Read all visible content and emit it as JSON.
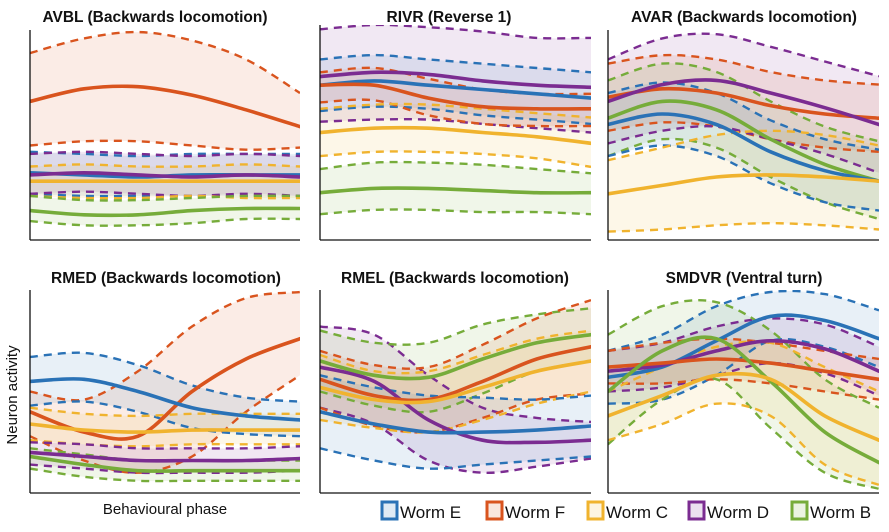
{
  "figure": {
    "ylabel": "Neuron activity",
    "xlabel": "Behavioural phase"
  },
  "legend": [
    {
      "name": "Worm E",
      "color": "#2a72b6"
    },
    {
      "name": "Worm F",
      "color": "#d9541e"
    },
    {
      "name": "Worm C",
      "color": "#f0b32e"
    },
    {
      "name": "Worm D",
      "color": "#7b2c91"
    },
    {
      "name": "Worm B",
      "color": "#76ac3a"
    }
  ],
  "chart_data": [
    {
      "type": "line",
      "title": "AVBL (Backwards locomotion)",
      "x": [
        0,
        0.2,
        0.4,
        0.6,
        0.8,
        1
      ],
      "ylim": [
        0,
        1
      ],
      "xlim": [
        0,
        1
      ],
      "series": [
        {
          "name": "Worm F",
          "mean": [
            0.66,
            0.72,
            0.73,
            0.69,
            0.62,
            0.54
          ],
          "upper": [
            0.89,
            0.96,
            0.99,
            0.95,
            0.86,
            0.7
          ],
          "lower": [
            0.45,
            0.47,
            0.47,
            0.45,
            0.43,
            0.44
          ]
        },
        {
          "name": "Worm E",
          "mean": [
            0.32,
            0.31,
            0.3,
            0.31,
            0.31,
            0.31
          ],
          "upper": [
            0.42,
            0.41,
            0.4,
            0.41,
            0.41,
            0.41
          ],
          "lower": [
            0.22,
            0.21,
            0.21,
            0.21,
            0.21,
            0.21
          ]
        },
        {
          "name": "Worm D",
          "mean": [
            0.31,
            0.32,
            0.31,
            0.3,
            0.31,
            0.3
          ],
          "upper": [
            0.41,
            0.42,
            0.41,
            0.4,
            0.41,
            0.4
          ],
          "lower": [
            0.22,
            0.23,
            0.22,
            0.21,
            0.22,
            0.21
          ]
        },
        {
          "name": "Worm C",
          "mean": [
            0.28,
            0.28,
            0.28,
            0.28,
            0.28,
            0.28
          ],
          "upper": [
            0.35,
            0.36,
            0.35,
            0.35,
            0.36,
            0.35
          ],
          "lower": [
            0.21,
            0.2,
            0.2,
            0.21,
            0.2,
            0.2
          ]
        },
        {
          "name": "Worm B",
          "mean": [
            0.14,
            0.12,
            0.12,
            0.14,
            0.15,
            0.15
          ],
          "upper": [
            0.21,
            0.19,
            0.19,
            0.2,
            0.21,
            0.21
          ],
          "lower": [
            0.09,
            0.07,
            0.07,
            0.08,
            0.1,
            0.1
          ]
        }
      ]
    },
    {
      "type": "line",
      "title": "RIVR (Reverse 1)",
      "x": [
        0,
        0.2,
        0.4,
        0.6,
        0.8,
        1
      ],
      "ylim": [
        0,
        1
      ],
      "xlim": [
        0,
        1
      ],
      "series": [
        {
          "name": "Worm D",
          "mean": [
            0.76,
            0.78,
            0.77,
            0.74,
            0.72,
            0.71
          ],
          "upper": [
            0.98,
            1.0,
            0.99,
            0.97,
            0.94,
            0.94
          ],
          "lower": [
            0.55,
            0.56,
            0.56,
            0.54,
            0.52,
            0.5
          ]
        },
        {
          "name": "Worm E",
          "mean": [
            0.72,
            0.74,
            0.72,
            0.7,
            0.68,
            0.66
          ],
          "upper": [
            0.84,
            0.86,
            0.84,
            0.82,
            0.8,
            0.78
          ],
          "lower": [
            0.6,
            0.62,
            0.61,
            0.58,
            0.56,
            0.54
          ]
        },
        {
          "name": "Worm F",
          "mean": [
            0.72,
            0.72,
            0.66,
            0.62,
            0.61,
            0.61
          ],
          "upper": [
            0.78,
            0.8,
            0.75,
            0.7,
            0.68,
            0.68
          ],
          "lower": [
            0.64,
            0.65,
            0.58,
            0.54,
            0.53,
            0.53
          ]
        },
        {
          "name": "Worm C",
          "mean": [
            0.5,
            0.52,
            0.52,
            0.5,
            0.48,
            0.45
          ],
          "upper": [
            0.61,
            0.63,
            0.63,
            0.61,
            0.59,
            0.57
          ],
          "lower": [
            0.39,
            0.41,
            0.41,
            0.4,
            0.38,
            0.34
          ]
        },
        {
          "name": "Worm B",
          "mean": [
            0.22,
            0.24,
            0.24,
            0.23,
            0.22,
            0.22
          ],
          "upper": [
            0.33,
            0.36,
            0.36,
            0.35,
            0.33,
            0.31
          ],
          "lower": [
            0.12,
            0.14,
            0.14,
            0.13,
            0.13,
            0.12
          ]
        }
      ]
    },
    {
      "type": "line",
      "title": "AVAR (Backwards locomotion)",
      "x": [
        0,
        0.2,
        0.4,
        0.6,
        0.8,
        1
      ],
      "ylim": [
        0,
        1
      ],
      "xlim": [
        0,
        1
      ],
      "series": [
        {
          "name": "Worm F",
          "mean": [
            0.68,
            0.72,
            0.7,
            0.64,
            0.6,
            0.58
          ],
          "upper": [
            0.84,
            0.88,
            0.86,
            0.8,
            0.76,
            0.74
          ],
          "lower": [
            0.52,
            0.56,
            0.54,
            0.48,
            0.44,
            0.42
          ]
        },
        {
          "name": "Worm D",
          "mean": [
            0.66,
            0.74,
            0.76,
            0.7,
            0.63,
            0.55
          ],
          "upper": [
            0.86,
            0.96,
            0.98,
            0.92,
            0.85,
            0.78
          ],
          "lower": [
            0.46,
            0.52,
            0.54,
            0.48,
            0.41,
            0.32
          ]
        },
        {
          "name": "Worm B",
          "mean": [
            0.58,
            0.66,
            0.62,
            0.48,
            0.36,
            0.28
          ],
          "upper": [
            0.76,
            0.84,
            0.8,
            0.66,
            0.54,
            0.47
          ],
          "lower": [
            0.4,
            0.48,
            0.44,
            0.3,
            0.18,
            0.1
          ]
        },
        {
          "name": "Worm E",
          "mean": [
            0.55,
            0.6,
            0.55,
            0.42,
            0.33,
            0.28
          ],
          "upper": [
            0.7,
            0.75,
            0.7,
            0.57,
            0.48,
            0.43
          ],
          "lower": [
            0.4,
            0.45,
            0.4,
            0.27,
            0.18,
            0.14
          ]
        },
        {
          "name": "Worm C",
          "mean": [
            0.22,
            0.26,
            0.3,
            0.31,
            0.3,
            0.28
          ],
          "upper": [
            0.38,
            0.44,
            0.5,
            0.52,
            0.5,
            0.45
          ],
          "lower": [
            0.04,
            0.05,
            0.07,
            0.08,
            0.07,
            0.05
          ]
        }
      ]
    },
    {
      "type": "line",
      "title": "RMED (Backwards locomotion)",
      "x": [
        0,
        0.2,
        0.4,
        0.6,
        0.8,
        1
      ],
      "ylim": [
        0,
        1
      ],
      "xlim": [
        0,
        1
      ],
      "series": [
        {
          "name": "Worm F",
          "mean": [
            0.4,
            0.3,
            0.28,
            0.5,
            0.66,
            0.76
          ],
          "upper": [
            0.5,
            0.46,
            0.6,
            0.82,
            0.96,
            0.99
          ],
          "lower": [
            0.28,
            0.16,
            0.1,
            0.18,
            0.4,
            0.58
          ]
        },
        {
          "name": "Worm E",
          "mean": [
            0.55,
            0.56,
            0.5,
            0.42,
            0.38,
            0.36
          ],
          "upper": [
            0.67,
            0.69,
            0.63,
            0.53,
            0.47,
            0.45
          ],
          "lower": [
            0.43,
            0.45,
            0.4,
            0.32,
            0.29,
            0.28
          ]
        },
        {
          "name": "Worm C",
          "mean": [
            0.34,
            0.31,
            0.3,
            0.31,
            0.31,
            0.31
          ],
          "upper": [
            0.42,
            0.39,
            0.38,
            0.39,
            0.39,
            0.39
          ],
          "lower": [
            0.26,
            0.24,
            0.23,
            0.24,
            0.24,
            0.24
          ]
        },
        {
          "name": "Worm D",
          "mean": [
            0.2,
            0.18,
            0.16,
            0.16,
            0.16,
            0.17
          ],
          "upper": [
            0.25,
            0.24,
            0.22,
            0.22,
            0.22,
            0.23
          ],
          "lower": [
            0.14,
            0.12,
            0.1,
            0.1,
            0.1,
            0.11
          ]
        },
        {
          "name": "Worm B",
          "mean": [
            0.18,
            0.14,
            0.11,
            0.11,
            0.11,
            0.11
          ],
          "upper": [
            0.22,
            0.19,
            0.16,
            0.16,
            0.16,
            0.16
          ],
          "lower": [
            0.12,
            0.08,
            0.06,
            0.06,
            0.06,
            0.06
          ]
        }
      ]
    },
    {
      "type": "line",
      "title": "RMEL (Backwards locomotion)",
      "x": [
        0,
        0.2,
        0.4,
        0.6,
        0.8,
        1
      ],
      "ylim": [
        0,
        1
      ],
      "xlim": [
        0,
        1
      ],
      "series": [
        {
          "name": "Worm D",
          "mean": [
            0.62,
            0.55,
            0.36,
            0.26,
            0.25,
            0.26
          ],
          "upper": [
            0.82,
            0.78,
            0.58,
            0.42,
            0.37,
            0.35
          ],
          "lower": [
            0.42,
            0.34,
            0.16,
            0.1,
            0.13,
            0.17
          ]
        },
        {
          "name": "Worm B",
          "mean": [
            0.65,
            0.58,
            0.57,
            0.66,
            0.74,
            0.78
          ],
          "upper": [
            0.8,
            0.74,
            0.74,
            0.83,
            0.88,
            0.91
          ],
          "lower": [
            0.5,
            0.43,
            0.4,
            0.49,
            0.6,
            0.65
          ]
        },
        {
          "name": "Worm F",
          "mean": [
            0.56,
            0.48,
            0.46,
            0.55,
            0.66,
            0.72
          ],
          "upper": [
            0.7,
            0.63,
            0.62,
            0.73,
            0.86,
            0.95
          ],
          "lower": [
            0.42,
            0.33,
            0.3,
            0.37,
            0.46,
            0.49
          ]
        },
        {
          "name": "Worm C",
          "mean": [
            0.52,
            0.46,
            0.45,
            0.52,
            0.6,
            0.65
          ],
          "upper": [
            0.68,
            0.6,
            0.6,
            0.68,
            0.76,
            0.8
          ],
          "lower": [
            0.36,
            0.32,
            0.3,
            0.36,
            0.44,
            0.5
          ]
        },
        {
          "name": "Worm E",
          "mean": [
            0.4,
            0.34,
            0.3,
            0.3,
            0.31,
            0.33
          ],
          "upper": [
            0.58,
            0.52,
            0.48,
            0.47,
            0.46,
            0.48
          ],
          "lower": [
            0.22,
            0.16,
            0.12,
            0.14,
            0.16,
            0.18
          ]
        }
      ]
    },
    {
      "type": "line",
      "title": "SMDVR (Ventral turn)",
      "x": [
        0,
        0.2,
        0.4,
        0.6,
        0.8,
        1
      ],
      "ylim": [
        0,
        1
      ],
      "xlim": [
        0,
        1
      ],
      "series": [
        {
          "name": "Worm E",
          "mean": [
            0.57,
            0.62,
            0.75,
            0.87,
            0.85,
            0.76
          ],
          "upper": [
            0.7,
            0.78,
            0.92,
            0.99,
            0.98,
            0.9
          ],
          "lower": [
            0.44,
            0.46,
            0.58,
            0.75,
            0.72,
            0.62
          ]
        },
        {
          "name": "Worm D",
          "mean": [
            0.6,
            0.63,
            0.7,
            0.75,
            0.71,
            0.6
          ],
          "upper": [
            0.7,
            0.74,
            0.82,
            0.86,
            0.83,
            0.72
          ],
          "lower": [
            0.5,
            0.52,
            0.58,
            0.64,
            0.59,
            0.48
          ]
        },
        {
          "name": "Worm F",
          "mean": [
            0.62,
            0.64,
            0.66,
            0.64,
            0.6,
            0.56
          ],
          "upper": [
            0.7,
            0.74,
            0.76,
            0.74,
            0.7,
            0.66
          ],
          "lower": [
            0.54,
            0.54,
            0.56,
            0.54,
            0.5,
            0.46
          ]
        },
        {
          "name": "Worm B",
          "mean": [
            0.5,
            0.7,
            0.76,
            0.55,
            0.3,
            0.15
          ],
          "upper": [
            0.78,
            0.92,
            0.94,
            0.8,
            0.56,
            0.42
          ],
          "lower": [
            0.24,
            0.46,
            0.56,
            0.32,
            0.1,
            0.02
          ]
        },
        {
          "name": "Worm C",
          "mean": [
            0.38,
            0.48,
            0.58,
            0.56,
            0.38,
            0.26
          ],
          "upper": [
            0.5,
            0.62,
            0.72,
            0.74,
            0.62,
            0.5
          ],
          "lower": [
            0.26,
            0.34,
            0.44,
            0.38,
            0.14,
            0.04
          ]
        }
      ]
    }
  ]
}
